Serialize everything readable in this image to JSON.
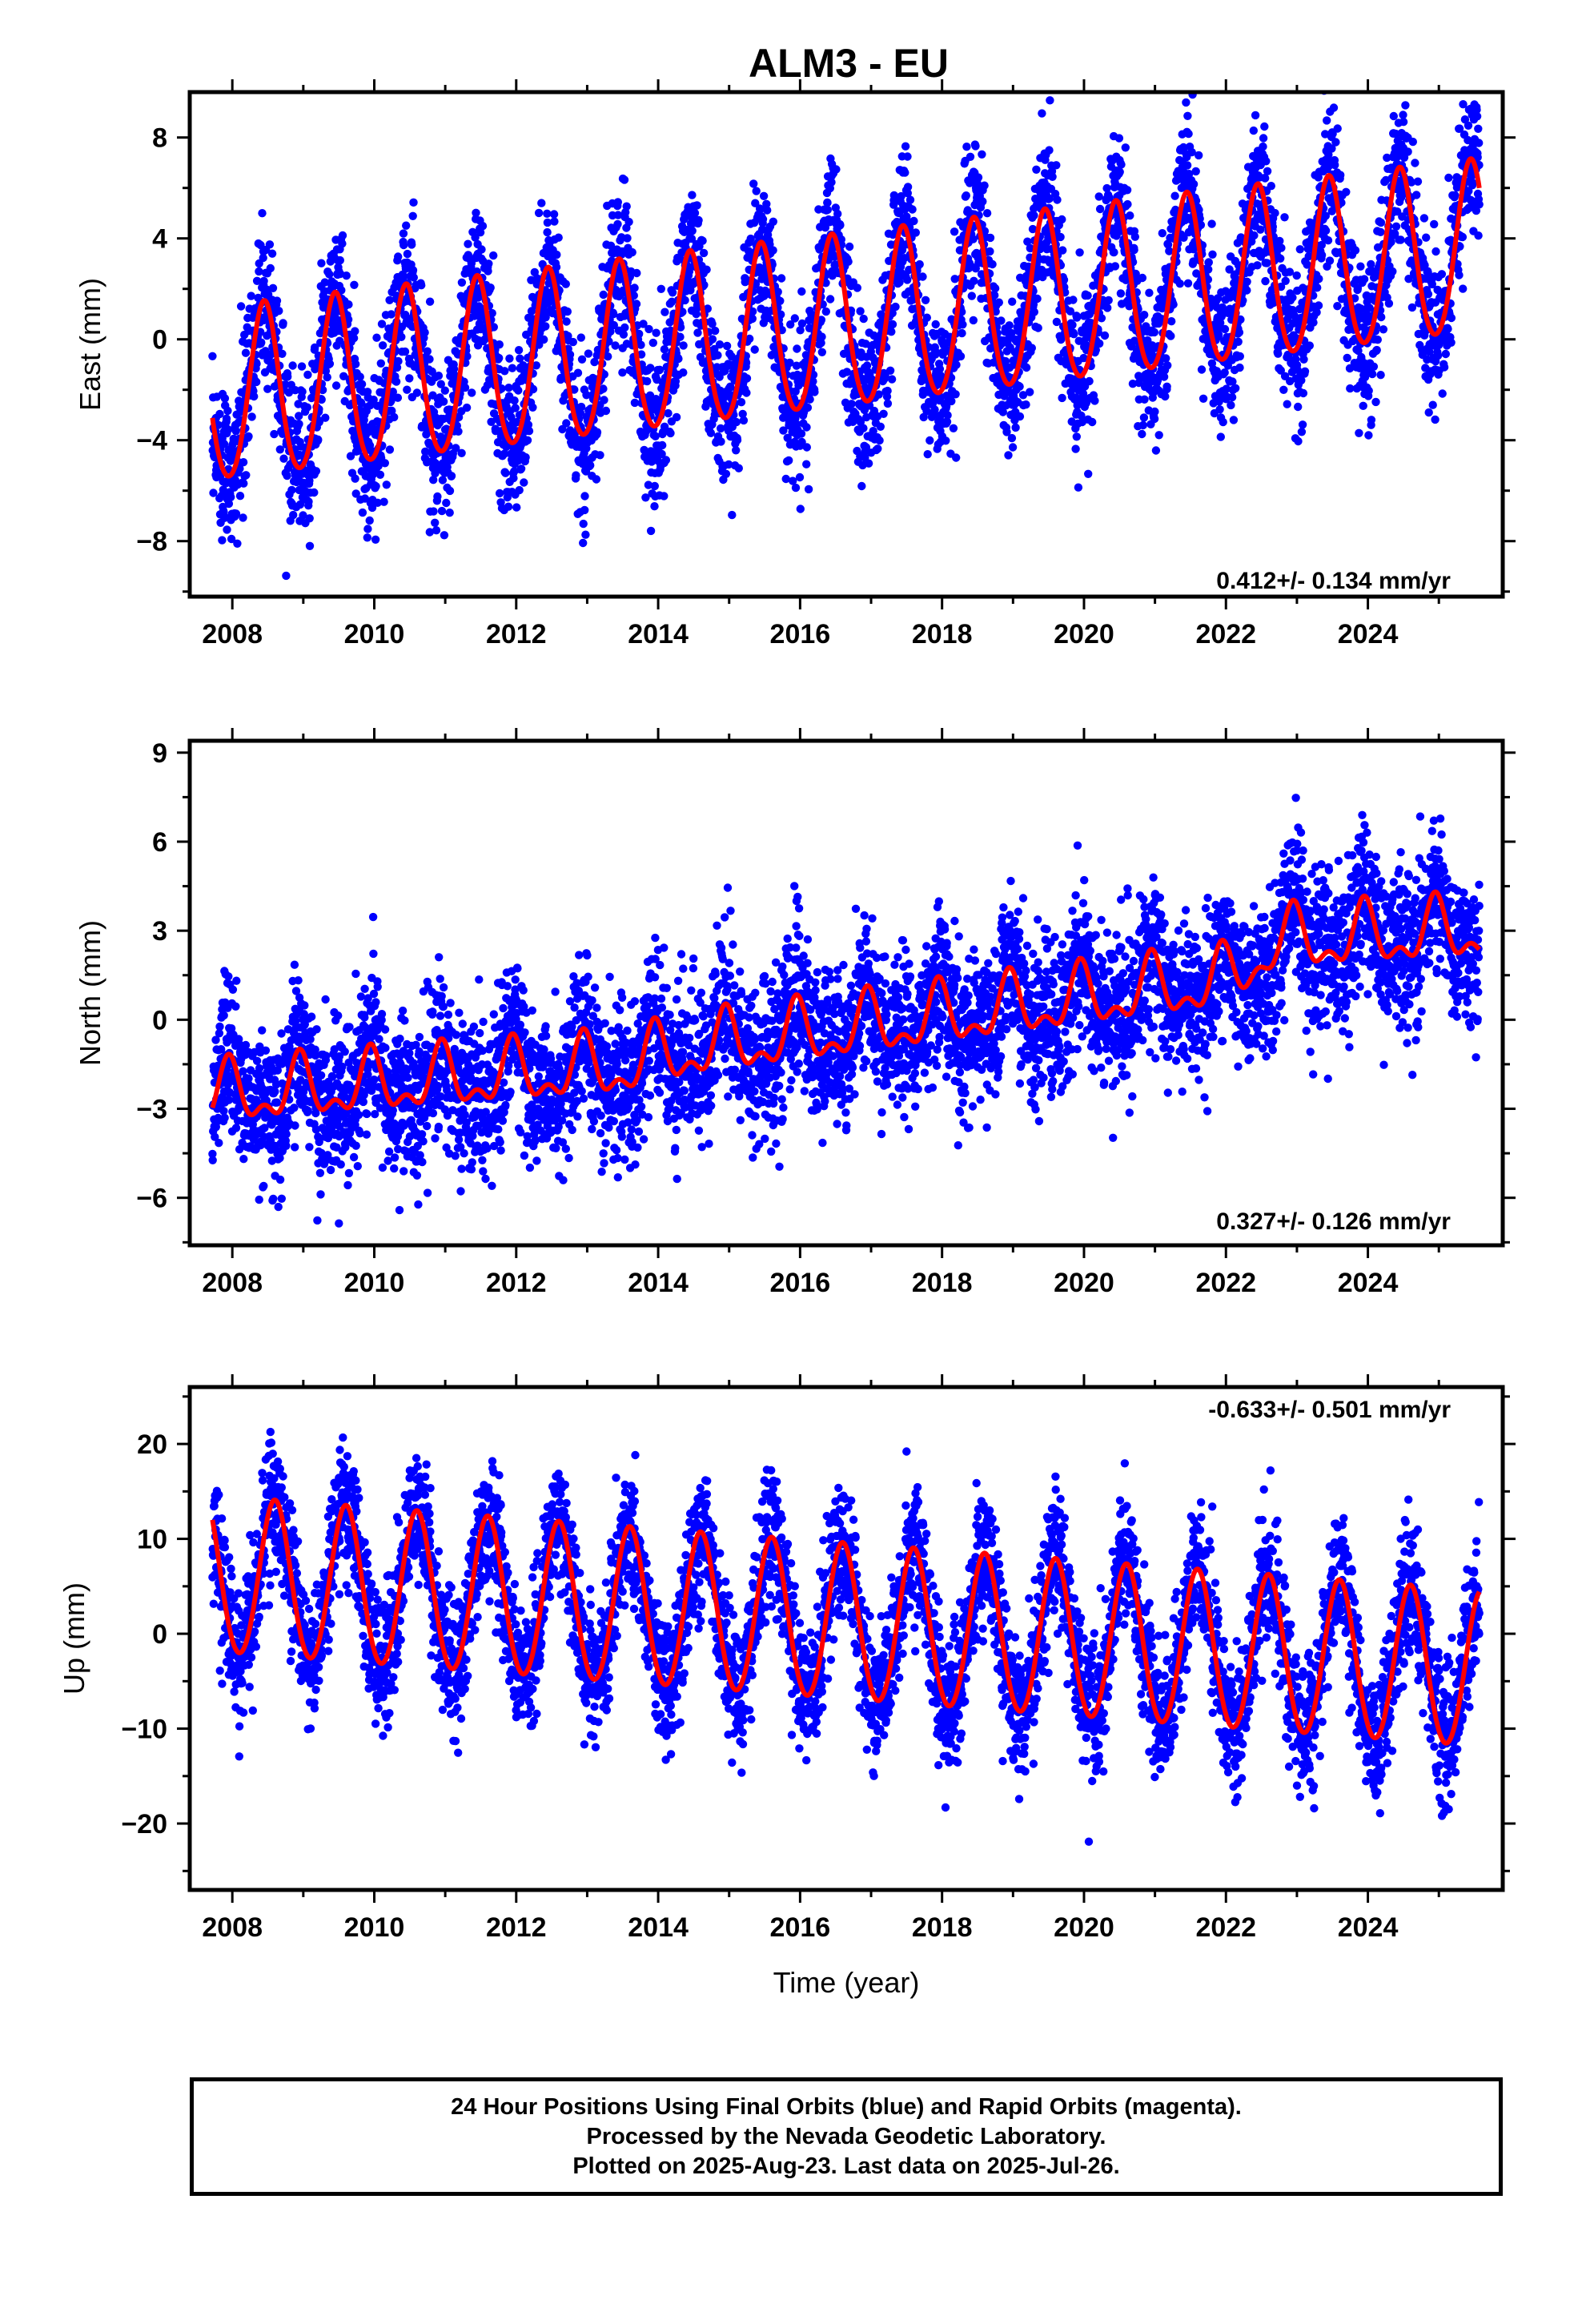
{
  "figure": {
    "title": "ALM3 - EU",
    "colors": {
      "final_orbits": "#0000ff",
      "model_fit": "#ff0000",
      "axes": "#000000"
    },
    "footer": {
      "line1": "24 Hour Positions Using Final Orbits (blue) and Rapid Orbits (magenta).",
      "line2": "Processed by the Nevada Geodetic Laboratory.",
      "line3": "Plotted on 2025-Aug-23. Last data on 2025-Jul-26."
    }
  },
  "chart_data": [
    {
      "type": "scatter",
      "title": "ALM3 - EU",
      "ylabel": "East (mm)",
      "xlabel": "",
      "xlim": [
        2007.4,
        2025.9
      ],
      "ylim": [
        -10.2,
        9.8
      ],
      "xticks": [
        2008,
        2010,
        2012,
        2014,
        2016,
        2018,
        2020,
        2022,
        2024
      ],
      "xtick_labels": [
        "2008",
        "2010",
        "2012",
        "2014",
        "2016",
        "2018",
        "2020",
        "2022",
        "2024"
      ],
      "yticks": [
        -8,
        -4,
        0,
        4,
        8
      ],
      "ytick_labels": [
        "−8",
        "−4",
        "0",
        "4",
        "8"
      ],
      "rate_text": "0.412+/- 0.134 mm/yr",
      "data_start": 2007.72,
      "data_end": 2025.57,
      "trend": {
        "value_at_start": -2.4,
        "value_at_end": 3.5
      },
      "annual_amplitude": 3.4,
      "annual_peak_phase": 0.45,
      "semiannual_amplitude": 0.3,
      "scatter_std": 1.5,
      "point_count": 5400,
      "series": [
        {
          "role": "daily positions",
          "color": "#0000ff"
        },
        {
          "role": "model fit",
          "color": "#ff0000"
        }
      ]
    },
    {
      "type": "scatter",
      "ylabel": "North (mm)",
      "xlabel": "",
      "xlim": [
        2007.4,
        2025.9
      ],
      "ylim": [
        -7.6,
        9.4
      ],
      "xticks": [
        2008,
        2010,
        2012,
        2014,
        2016,
        2018,
        2020,
        2022,
        2024
      ],
      "xtick_labels": [
        "2008",
        "2010",
        "2012",
        "2014",
        "2016",
        "2018",
        "2020",
        "2022",
        "2024"
      ],
      "yticks": [
        -6,
        -3,
        0,
        3,
        6,
        9
      ],
      "ytick_labels": [
        "−6",
        "−3",
        "0",
        "3",
        "6",
        "9"
      ],
      "rate_text": "0.327+/- 0.126 mm/yr",
      "data_start": 2007.72,
      "data_end": 2025.57,
      "trend_points": [
        [
          2007.7,
          -2.6
        ],
        [
          2013.5,
          -1.6
        ],
        [
          2014.5,
          -1.0
        ],
        [
          2022.0,
          1.3
        ],
        [
          2022.7,
          2.6
        ],
        [
          2025.6,
          3.0
        ]
      ],
      "annual_amplitude": 0.9,
      "annual_peak_phase": 0.95,
      "semiannual_amplitude": 0.5,
      "scatter_std": 1.3,
      "point_count": 5400,
      "series": [
        {
          "role": "daily positions",
          "color": "#0000ff"
        },
        {
          "role": "model fit",
          "color": "#ff0000"
        }
      ]
    },
    {
      "type": "scatter",
      "ylabel": "Up (mm)",
      "xlabel": "Time (year)",
      "xlim": [
        2007.4,
        2025.9
      ],
      "ylim": [
        -27,
        26
      ],
      "xticks": [
        2008,
        2010,
        2012,
        2014,
        2016,
        2018,
        2020,
        2022,
        2024
      ],
      "xtick_labels": [
        "2008",
        "2010",
        "2012",
        "2014",
        "2016",
        "2018",
        "2020",
        "2022",
        "2024"
      ],
      "yticks": [
        -20,
        -10,
        0,
        10,
        20
      ],
      "ytick_labels": [
        "−20",
        "−10",
        "0",
        "10",
        "20"
      ],
      "rate_text": "-0.633+/- 0.501 mm/yr",
      "data_start": 2007.72,
      "data_end": 2025.57,
      "trend": {
        "value_at_start": 6.0,
        "value_at_end": -4.0
      },
      "annual_amplitude": 8.2,
      "annual_peak_phase": 0.6,
      "semiannual_amplitude": 0.4,
      "scatter_std": 3.5,
      "point_count": 5400,
      "series": [
        {
          "role": "daily positions",
          "color": "#0000ff"
        },
        {
          "role": "model fit",
          "color": "#ff0000"
        }
      ]
    }
  ]
}
